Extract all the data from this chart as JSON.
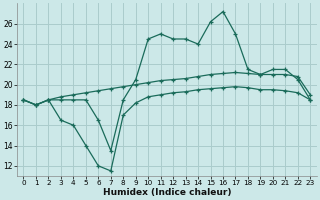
{
  "title": "",
  "xlabel": "Humidex (Indice chaleur)",
  "ylabel": "",
  "bg_color": "#cce8e8",
  "grid_color": "#aacccc",
  "line_color": "#1a6b5a",
  "xlim": [
    -0.5,
    23.5
  ],
  "ylim": [
    11,
    28
  ],
  "yticks": [
    12,
    14,
    16,
    18,
    20,
    22,
    24,
    26
  ],
  "xticks": [
    0,
    1,
    2,
    3,
    4,
    5,
    6,
    7,
    8,
    9,
    10,
    11,
    12,
    13,
    14,
    15,
    16,
    17,
    18,
    19,
    20,
    21,
    22,
    23
  ],
  "line1_x": [
    0,
    1,
    2,
    3,
    4,
    5,
    6,
    7,
    8,
    9,
    10,
    11,
    12,
    13,
    14,
    15,
    16,
    17,
    18,
    19,
    20,
    21,
    22,
    23
  ],
  "line1_y": [
    18.5,
    18.0,
    18.5,
    18.5,
    18.5,
    18.5,
    16.5,
    13.5,
    18.5,
    20.5,
    24.5,
    25.0,
    24.5,
    24.5,
    24.0,
    26.2,
    27.2,
    25.0,
    21.5,
    21.0,
    21.5,
    21.5,
    20.5,
    18.5
  ],
  "line2_x": [
    0,
    1,
    2,
    3,
    4,
    5,
    6,
    7,
    8,
    9,
    10,
    11,
    12,
    13,
    14,
    15,
    16,
    17,
    18,
    19,
    20,
    21,
    22,
    23
  ],
  "line2_y": [
    18.5,
    18.0,
    18.5,
    18.8,
    19.0,
    19.2,
    19.4,
    19.6,
    19.8,
    20.0,
    20.2,
    20.4,
    20.5,
    20.6,
    20.8,
    21.0,
    21.1,
    21.2,
    21.1,
    21.0,
    21.0,
    21.0,
    20.8,
    19.0
  ],
  "line3_x": [
    0,
    1,
    2,
    3,
    4,
    5,
    6,
    7,
    8,
    9,
    10,
    11,
    12,
    13,
    14,
    15,
    16,
    17,
    18,
    19,
    20,
    21,
    22,
    23
  ],
  "line3_y": [
    18.5,
    18.0,
    18.5,
    16.5,
    16.0,
    14.0,
    12.0,
    11.5,
    17.0,
    18.2,
    18.8,
    19.0,
    19.2,
    19.3,
    19.5,
    19.6,
    19.7,
    19.8,
    19.7,
    19.5,
    19.5,
    19.4,
    19.2,
    18.5
  ]
}
